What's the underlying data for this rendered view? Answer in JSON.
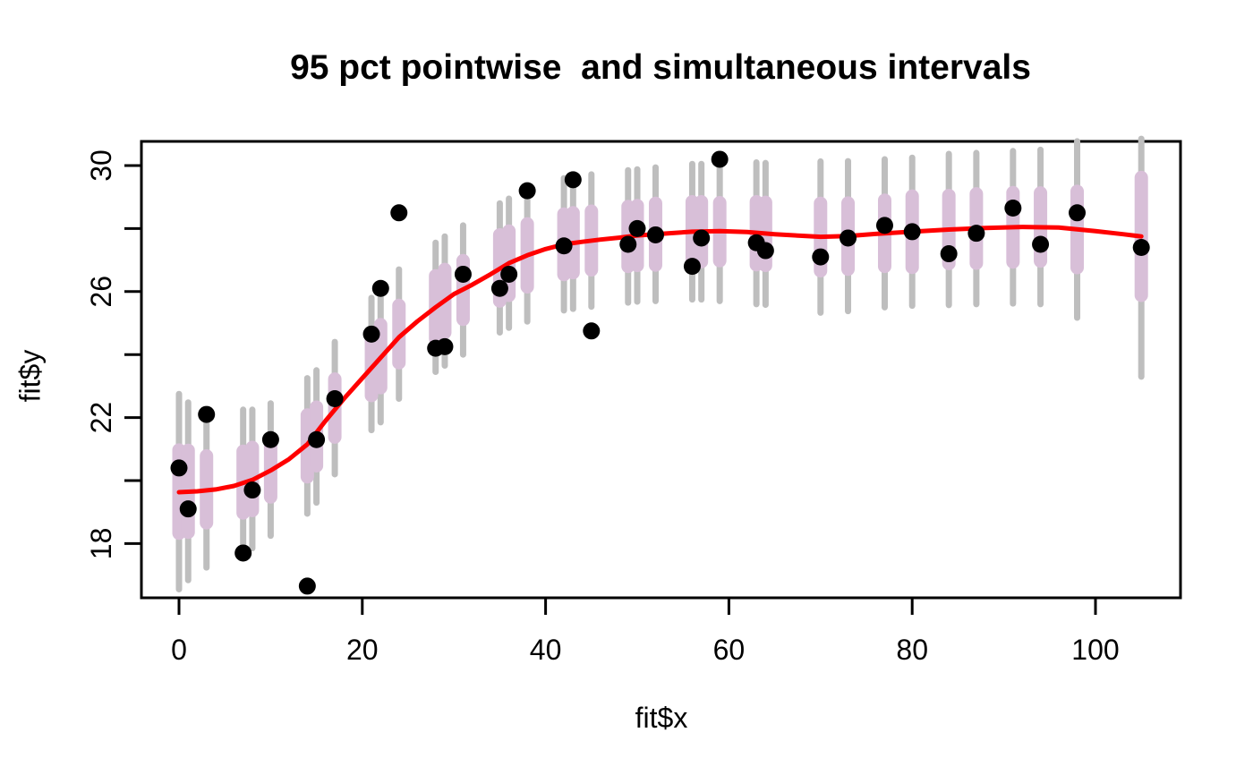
{
  "chart_data": {
    "type": "scatter",
    "title": "95 pct pointwise  and simultaneous intervals",
    "xlabel": "fit$x",
    "ylabel": "fit$y",
    "xlim": [
      -4.1,
      109.3
    ],
    "ylim": [
      16.28,
      30.77
    ],
    "grid": false,
    "legend": false,
    "xticks": {
      "values": [
        0,
        20,
        40,
        60,
        80,
        100
      ],
      "labels": [
        "0",
        "20",
        "40",
        "60",
        "80",
        "100"
      ]
    },
    "yticks": {
      "values": [
        18,
        20,
        22,
        24,
        26,
        28,
        30
      ],
      "labels": [
        "18",
        "",
        "22",
        "",
        "26",
        "",
        "30"
      ]
    },
    "colors": {
      "background": "#FFFFFF",
      "box": "#000000",
      "points": "#000000",
      "fit_line": "#FF0000",
      "pointwise_band": "#D8BFD8",
      "simultaneous_band": "#BEBEBE",
      "text": "#000000"
    },
    "points": {
      "x": [
        0,
        1,
        3,
        7,
        8,
        10,
        14,
        15,
        17,
        21,
        22,
        24,
        28,
        29,
        31,
        35,
        36,
        38,
        42,
        43,
        45,
        49,
        50,
        52,
        56,
        57,
        59,
        63,
        64,
        70,
        73,
        77,
        80,
        84,
        87,
        91,
        94,
        98,
        105
      ],
      "y": [
        20.4,
        19.1,
        22.1,
        17.7,
        19.7,
        21.3,
        16.65,
        21.3,
        22.6,
        24.65,
        26.1,
        28.5,
        24.2,
        24.25,
        26.55,
        26.1,
        26.55,
        29.2,
        27.45,
        29.55,
        24.75,
        27.5,
        28.0,
        27.8,
        26.8,
        27.7,
        30.2,
        27.55,
        27.3,
        27.1,
        27.7,
        28.1,
        27.9,
        27.2,
        27.85,
        28.65,
        27.5,
        28.5,
        27.4
      ]
    },
    "fit_line": {
      "x": [
        0,
        2,
        4,
        6,
        8,
        10,
        12,
        14,
        16,
        18,
        20,
        22,
        24,
        26,
        28,
        30,
        32,
        34,
        36,
        38,
        40,
        42,
        44,
        46,
        48,
        50,
        53,
        56,
        59,
        62,
        65,
        68,
        70,
        73,
        76,
        80,
        84,
        88,
        92,
        96,
        100,
        103,
        105
      ],
      "y": [
        19.63,
        19.66,
        19.72,
        19.83,
        20.02,
        20.32,
        20.68,
        21.15,
        21.9,
        22.6,
        23.25,
        23.9,
        24.55,
        25.05,
        25.5,
        25.92,
        26.22,
        26.55,
        26.9,
        27.15,
        27.35,
        27.5,
        27.58,
        27.65,
        27.71,
        27.78,
        27.84,
        27.9,
        27.92,
        27.89,
        27.82,
        27.77,
        27.74,
        27.76,
        27.83,
        27.9,
        27.97,
        28.02,
        28.05,
        28.03,
        27.92,
        27.82,
        27.75
      ]
    },
    "intervals": {
      "x": [
        0,
        1,
        3,
        7,
        8,
        10,
        14,
        15,
        17,
        21,
        22,
        24,
        28,
        29,
        31,
        35,
        36,
        38,
        42,
        43,
        45,
        49,
        50,
        52,
        56,
        57,
        59,
        63,
        64,
        70,
        73,
        77,
        80,
        84,
        87,
        91,
        94,
        98,
        105
      ],
      "fit": [
        19.65,
        19.66,
        19.72,
        19.95,
        20.05,
        20.35,
        21.1,
        21.4,
        22.3,
        23.7,
        23.95,
        24.65,
        25.5,
        25.7,
        26.05,
        26.75,
        26.9,
        27.15,
        27.5,
        27.55,
        27.62,
        27.75,
        27.78,
        27.82,
        27.9,
        27.9,
        27.9,
        27.85,
        27.83,
        27.73,
        27.76,
        27.85,
        27.9,
        27.97,
        28.0,
        28.04,
        28.05,
        27.97,
        27.75
      ],
      "pointwise_lo": [
        18.33,
        18.36,
        18.66,
        18.97,
        19.05,
        19.48,
        20.12,
        20.47,
        21.38,
        22.7,
        22.95,
        23.74,
        24.5,
        24.7,
        25.12,
        25.7,
        25.88,
        26.15,
        26.54,
        26.6,
        26.69,
        26.8,
        26.83,
        26.84,
        26.95,
        26.95,
        26.98,
        26.85,
        26.83,
        26.66,
        26.71,
        26.8,
        26.77,
        26.89,
        26.9,
        26.94,
        26.97,
        26.76,
        25.88
      ],
      "pointwise_hi": [
        20.97,
        20.96,
        20.78,
        20.93,
        21.05,
        21.22,
        22.08,
        22.33,
        23.22,
        24.7,
        24.95,
        25.56,
        26.5,
        26.7,
        26.98,
        27.8,
        27.92,
        28.15,
        28.46,
        28.5,
        28.55,
        28.7,
        28.73,
        28.8,
        28.85,
        28.85,
        28.82,
        28.85,
        28.83,
        28.8,
        28.81,
        28.9,
        29.03,
        29.05,
        29.1,
        29.14,
        29.13,
        29.18,
        29.62
      ],
      "simultaneous_lo": [
        16.55,
        16.84,
        17.24,
        17.65,
        17.85,
        18.25,
        18.95,
        19.3,
        20.2,
        21.6,
        21.85,
        22.6,
        23.45,
        23.65,
        24.0,
        24.7,
        24.85,
        25.05,
        25.4,
        25.45,
        25.52,
        25.65,
        25.68,
        25.7,
        25.75,
        25.75,
        25.7,
        25.6,
        25.58,
        25.33,
        25.38,
        25.5,
        25.55,
        25.57,
        25.6,
        25.62,
        25.6,
        25.17,
        23.3
      ],
      "simultaneous_hi": [
        22.75,
        22.48,
        22.2,
        22.25,
        22.25,
        22.45,
        23.25,
        23.5,
        24.4,
        25.8,
        26.05,
        26.7,
        27.55,
        27.75,
        28.1,
        28.8,
        28.95,
        29.25,
        29.6,
        29.65,
        29.72,
        29.85,
        29.88,
        29.94,
        30.05,
        30.05,
        30.1,
        30.1,
        30.08,
        30.13,
        30.14,
        30.2,
        30.25,
        30.37,
        30.4,
        30.46,
        30.5,
        30.77,
        30.85
      ]
    }
  }
}
